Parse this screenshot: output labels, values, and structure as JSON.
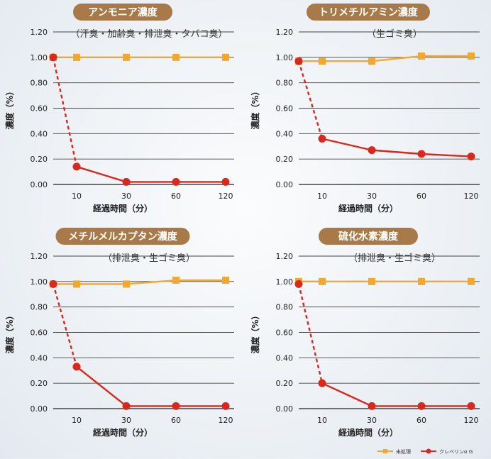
{
  "chart_data": [
    {
      "type": "line",
      "title": "アンモニア濃度",
      "subtitle": "（汗臭・加齢臭・排泄臭・タバコ臭）",
      "xlabel": "経過時間（分）",
      "ylabel": "濃度（%）",
      "ylim": [
        0,
        1.2
      ],
      "yticks": [
        "0.00",
        "0.20",
        "0.40",
        "0.60",
        "0.80",
        "1.00",
        "1.20"
      ],
      "x": [
        "0",
        "10",
        "30",
        "60",
        "120"
      ],
      "series": [
        {
          "name": "未処理",
          "color": "#f0a830",
          "marker": "square",
          "values": [
            1.0,
            1.0,
            1.0,
            1.0,
            1.0
          ]
        },
        {
          "name": "クレベリンα G",
          "color": "#d9281e",
          "marker": "circle",
          "values": [
            1.0,
            0.14,
            0.02,
            0.02,
            0.02
          ]
        }
      ]
    },
    {
      "type": "line",
      "title": "トリメチルアミン濃度",
      "subtitle": "（生ゴミ臭）",
      "xlabel": "経過時間（分）",
      "ylabel": "濃度（%）",
      "ylim": [
        0,
        1.2
      ],
      "yticks": [
        "0.00",
        "0.20",
        "0.40",
        "0.60",
        "0.80",
        "1.00",
        "1.20"
      ],
      "x": [
        "0",
        "10",
        "30",
        "60",
        "120"
      ],
      "series": [
        {
          "name": "未処理",
          "color": "#f0a830",
          "marker": "square",
          "values": [
            0.97,
            0.97,
            0.97,
            1.01,
            1.01
          ]
        },
        {
          "name": "クレベリンα G",
          "color": "#d9281e",
          "marker": "circle",
          "values": [
            0.97,
            0.36,
            0.27,
            0.24,
            0.22
          ]
        }
      ]
    },
    {
      "type": "line",
      "title": "メチルメルカプタン濃度",
      "subtitle": "（排泄臭・生ゴミ臭）",
      "xlabel": "経過時間（分）",
      "ylabel": "濃度（%）",
      "ylim": [
        0,
        1.2
      ],
      "yticks": [
        "0.00",
        "0.20",
        "0.40",
        "0.60",
        "0.80",
        "1.00",
        "1.20"
      ],
      "x": [
        "0",
        "10",
        "30",
        "60",
        "120"
      ],
      "series": [
        {
          "name": "未処理",
          "color": "#f0a830",
          "marker": "square",
          "values": [
            0.98,
            0.98,
            0.98,
            1.01,
            1.01
          ]
        },
        {
          "name": "クレベリンα G",
          "color": "#d9281e",
          "marker": "circle",
          "values": [
            0.98,
            0.33,
            0.02,
            0.02,
            0.02
          ]
        }
      ]
    },
    {
      "type": "line",
      "title": "硫化水素濃度",
      "subtitle": "（排泄臭・生ゴミ臭）",
      "xlabel": "経過時間（分）",
      "ylabel": "濃度（%）",
      "ylim": [
        0,
        1.2
      ],
      "yticks": [
        "0.00",
        "0.20",
        "0.40",
        "0.60",
        "0.80",
        "1.00",
        "1.20"
      ],
      "x": [
        "0",
        "10",
        "30",
        "60",
        "120"
      ],
      "series": [
        {
          "name": "未処理",
          "color": "#f0a830",
          "marker": "square",
          "values": [
            1.0,
            1.0,
            1.0,
            1.0,
            1.0
          ]
        },
        {
          "name": "クレベリンα G",
          "color": "#d9281e",
          "marker": "circle",
          "values": [
            0.98,
            0.2,
            0.02,
            0.02,
            0.02
          ]
        }
      ]
    }
  ],
  "legend": {
    "items": [
      {
        "label": "未処理",
        "color": "#f0a830",
        "marker": "square"
      },
      {
        "label": "クレベリンα G",
        "color": "#d9281e",
        "marker": "circle"
      }
    ]
  },
  "colors": {
    "pill": "#a87a4a",
    "grid": "#444444"
  }
}
